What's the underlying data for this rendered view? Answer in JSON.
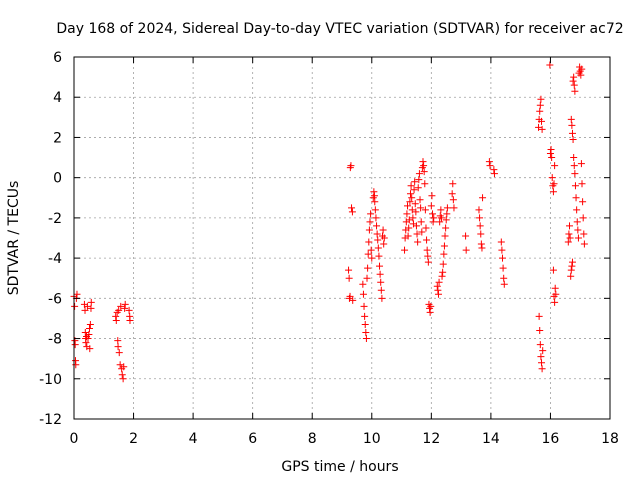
{
  "chart_data": {
    "type": "scatter",
    "title": "Day 168 of 2024, Sidereal Day-to-day VTEC variation (SDTVAR) for receiver ac72",
    "xlabel": "GPS time / hours",
    "ylabel": "SDTVAR / TECUs",
    "xlim": [
      0,
      18
    ],
    "ylim": [
      -12,
      6
    ],
    "xticks": [
      0,
      2,
      4,
      6,
      8,
      10,
      12,
      14,
      16,
      18
    ],
    "yticks": [
      -12,
      -10,
      -8,
      -6,
      -4,
      -2,
      0,
      2,
      4,
      6
    ],
    "grid": true,
    "marker": "+",
    "color": "#ff0000",
    "series": [
      {
        "name": "SDTVAR",
        "points": [
          [
            0.0,
            -5.9
          ],
          [
            0.02,
            -6.4
          ],
          [
            0.03,
            -8.1
          ],
          [
            0.04,
            -8.3
          ],
          [
            0.05,
            -9.1
          ],
          [
            0.06,
            -9.3
          ],
          [
            0.08,
            -6.0
          ],
          [
            0.1,
            -5.8
          ],
          [
            0.35,
            -6.3
          ],
          [
            0.37,
            -6.6
          ],
          [
            0.38,
            -7.7
          ],
          [
            0.39,
            -8.0
          ],
          [
            0.4,
            -8.2
          ],
          [
            0.42,
            -7.9
          ],
          [
            0.43,
            -8.4
          ],
          [
            0.45,
            -6.4
          ],
          [
            0.47,
            -8.0
          ],
          [
            0.5,
            -7.8
          ],
          [
            0.52,
            -7.5
          ],
          [
            0.53,
            -8.5
          ],
          [
            0.55,
            -7.3
          ],
          [
            0.57,
            -6.5
          ],
          [
            0.58,
            -6.2
          ],
          [
            1.4,
            -6.9
          ],
          [
            1.42,
            -7.1
          ],
          [
            1.45,
            -6.7
          ],
          [
            1.47,
            -8.1
          ],
          [
            1.48,
            -8.4
          ],
          [
            1.5,
            -6.6
          ],
          [
            1.52,
            -8.7
          ],
          [
            1.55,
            -9.3
          ],
          [
            1.57,
            -6.4
          ],
          [
            1.6,
            -9.5
          ],
          [
            1.62,
            -9.8
          ],
          [
            1.65,
            -10.0
          ],
          [
            1.67,
            -9.4
          ],
          [
            1.7,
            -6.5
          ],
          [
            1.72,
            -6.3
          ],
          [
            1.85,
            -6.6
          ],
          [
            1.87,
            -6.9
          ],
          [
            1.88,
            -7.1
          ],
          [
            9.22,
            -4.6
          ],
          [
            9.24,
            -5.0
          ],
          [
            9.25,
            -6.0
          ],
          [
            9.27,
            -5.9
          ],
          [
            9.28,
            0.5
          ],
          [
            9.3,
            0.6
          ],
          [
            9.32,
            -1.5
          ],
          [
            9.35,
            -1.7
          ],
          [
            9.36,
            -6.1
          ],
          [
            9.7,
            -5.3
          ],
          [
            9.72,
            -5.8
          ],
          [
            9.74,
            -6.4
          ],
          [
            9.76,
            -6.9
          ],
          [
            9.78,
            -7.3
          ],
          [
            9.8,
            -7.7
          ],
          [
            9.82,
            -8.0
          ],
          [
            9.84,
            -5.0
          ],
          [
            9.86,
            -4.5
          ],
          [
            9.88,
            -3.8
          ],
          [
            9.9,
            -3.2
          ],
          [
            9.92,
            -2.6
          ],
          [
            9.94,
            -2.2
          ],
          [
            9.96,
            -1.8
          ],
          [
            9.98,
            -3.6
          ],
          [
            10.0,
            -4.0
          ],
          [
            10.05,
            -1.0
          ],
          [
            10.07,
            -0.7
          ],
          [
            10.09,
            -0.9
          ],
          [
            10.1,
            -1.2
          ],
          [
            10.12,
            -1.6
          ],
          [
            10.14,
            -2.0
          ],
          [
            10.16,
            -2.4
          ],
          [
            10.18,
            -2.8
          ],
          [
            10.2,
            -3.1
          ],
          [
            10.22,
            -3.5
          ],
          [
            10.24,
            -3.9
          ],
          [
            10.26,
            -4.4
          ],
          [
            10.28,
            -4.8
          ],
          [
            10.3,
            -5.2
          ],
          [
            10.32,
            -5.6
          ],
          [
            10.34,
            -6.0
          ],
          [
            10.36,
            -2.9
          ],
          [
            10.38,
            -2.6
          ],
          [
            10.4,
            -3.3
          ],
          [
            10.42,
            -3.0
          ],
          [
            11.1,
            -3.6
          ],
          [
            11.12,
            -3.0
          ],
          [
            11.14,
            -2.6
          ],
          [
            11.16,
            -2.2
          ],
          [
            11.18,
            -1.8
          ],
          [
            11.2,
            -1.4
          ],
          [
            11.22,
            -2.9
          ],
          [
            11.24,
            -2.5
          ],
          [
            11.26,
            -2.1
          ],
          [
            11.28,
            -1.2
          ],
          [
            11.3,
            -0.8
          ],
          [
            11.32,
            -0.4
          ],
          [
            11.34,
            -1.0
          ],
          [
            11.36,
            -1.6
          ],
          [
            11.38,
            -2.0
          ],
          [
            11.4,
            -2.3
          ],
          [
            11.42,
            -0.6
          ],
          [
            11.44,
            -0.2
          ],
          [
            11.46,
            -1.3
          ],
          [
            11.48,
            -1.7
          ],
          [
            11.5,
            -2.4
          ],
          [
            11.52,
            -2.8
          ],
          [
            11.54,
            -3.2
          ],
          [
            11.56,
            -0.5
          ],
          [
            11.58,
            -0.1
          ],
          [
            11.6,
            0.2
          ],
          [
            11.62,
            -1.1
          ],
          [
            11.64,
            -1.5
          ],
          [
            11.66,
            -2.2
          ],
          [
            11.68,
            -2.7
          ],
          [
            11.7,
            0.5
          ],
          [
            11.72,
            0.8
          ],
          [
            11.74,
            0.6
          ],
          [
            11.76,
            0.3
          ],
          [
            11.78,
            -0.3
          ],
          [
            11.8,
            -1.6
          ],
          [
            11.82,
            -2.5
          ],
          [
            11.84,
            -3.1
          ],
          [
            11.86,
            -3.6
          ],
          [
            11.88,
            -3.9
          ],
          [
            11.9,
            -4.2
          ],
          [
            11.92,
            -6.3
          ],
          [
            11.94,
            -6.5
          ],
          [
            11.96,
            -6.7
          ],
          [
            11.98,
            -6.4
          ],
          [
            12.0,
            -1.4
          ],
          [
            12.02,
            -0.9
          ],
          [
            12.04,
            -1.8
          ],
          [
            12.06,
            -2.2
          ],
          [
            12.08,
            -2.0
          ],
          [
            12.2,
            -5.4
          ],
          [
            12.22,
            -5.6
          ],
          [
            12.24,
            -5.8
          ],
          [
            12.26,
            -5.2
          ],
          [
            12.28,
            -2.2
          ],
          [
            12.3,
            -1.9
          ],
          [
            12.32,
            -1.6
          ],
          [
            12.34,
            -2.0
          ],
          [
            12.36,
            -4.9
          ],
          [
            12.38,
            -4.7
          ],
          [
            12.4,
            -4.3
          ],
          [
            12.42,
            -3.8
          ],
          [
            12.44,
            -3.4
          ],
          [
            12.46,
            -2.9
          ],
          [
            12.48,
            -2.5
          ],
          [
            12.5,
            -2.1
          ],
          [
            12.52,
            -1.8
          ],
          [
            12.54,
            -1.5
          ],
          [
            12.7,
            -0.8
          ],
          [
            12.72,
            -0.3
          ],
          [
            12.74,
            -1.1
          ],
          [
            12.76,
            -1.5
          ],
          [
            13.15,
            -2.9
          ],
          [
            13.17,
            -3.6
          ],
          [
            13.6,
            -1.6
          ],
          [
            13.62,
            -2.0
          ],
          [
            13.64,
            -2.4
          ],
          [
            13.66,
            -2.8
          ],
          [
            13.68,
            -3.3
          ],
          [
            13.7,
            -3.5
          ],
          [
            13.72,
            -1.0
          ],
          [
            13.95,
            0.8
          ],
          [
            13.97,
            0.6
          ],
          [
            14.1,
            0.4
          ],
          [
            14.12,
            0.2
          ],
          [
            14.35,
            -3.2
          ],
          [
            14.37,
            -3.6
          ],
          [
            14.39,
            -4.0
          ],
          [
            14.41,
            -4.5
          ],
          [
            14.43,
            -5.0
          ],
          [
            14.45,
            -5.3
          ],
          [
            15.6,
            2.5
          ],
          [
            15.62,
            2.9
          ],
          [
            15.64,
            3.3
          ],
          [
            15.66,
            3.6
          ],
          [
            15.68,
            3.9
          ],
          [
            15.7,
            2.8
          ],
          [
            15.72,
            2.4
          ],
          [
            15.62,
            -6.9
          ],
          [
            15.64,
            -7.6
          ],
          [
            15.66,
            -8.3
          ],
          [
            15.68,
            -8.9
          ],
          [
            15.7,
            -9.2
          ],
          [
            15.72,
            -9.5
          ],
          [
            15.74,
            -8.6
          ],
          [
            15.98,
            5.6
          ],
          [
            16.0,
            1.2
          ],
          [
            16.02,
            1.4
          ],
          [
            16.04,
            1.0
          ],
          [
            16.06,
            0.0
          ],
          [
            16.08,
            -0.4
          ],
          [
            16.1,
            -0.7
          ],
          [
            16.12,
            -0.3
          ],
          [
            16.14,
            0.6
          ],
          [
            16.1,
            -4.6
          ],
          [
            16.12,
            -5.9
          ],
          [
            16.14,
            -6.2
          ],
          [
            16.16,
            -5.5
          ],
          [
            16.18,
            -5.8
          ],
          [
            16.6,
            -3.2
          ],
          [
            16.62,
            -2.8
          ],
          [
            16.64,
            -2.4
          ],
          [
            16.66,
            -3.0
          ],
          [
            16.68,
            -4.9
          ],
          [
            16.7,
            -4.6
          ],
          [
            16.72,
            -4.4
          ],
          [
            16.74,
            -4.2
          ],
          [
            16.76,
            4.8
          ],
          [
            16.78,
            5.0
          ],
          [
            16.8,
            4.6
          ],
          [
            16.82,
            4.3
          ],
          [
            16.7,
            2.9
          ],
          [
            16.72,
            2.6
          ],
          [
            16.74,
            2.2
          ],
          [
            16.76,
            1.9
          ],
          [
            16.78,
            1.0
          ],
          [
            16.8,
            0.6
          ],
          [
            16.82,
            0.2
          ],
          [
            16.84,
            -0.4
          ],
          [
            16.86,
            -1.0
          ],
          [
            16.88,
            -1.6
          ],
          [
            16.9,
            -2.2
          ],
          [
            16.92,
            -2.6
          ],
          [
            16.94,
            -3.0
          ],
          [
            16.96,
            5.2
          ],
          [
            16.98,
            5.5
          ],
          [
            17.0,
            5.3
          ],
          [
            17.02,
            5.1
          ],
          [
            17.04,
            0.7
          ],
          [
            17.06,
            -0.3
          ],
          [
            17.08,
            -1.2
          ],
          [
            17.1,
            -2.0
          ],
          [
            17.12,
            -2.8
          ],
          [
            17.14,
            -3.3
          ],
          [
            17.05,
            5.4
          ]
        ]
      }
    ]
  }
}
